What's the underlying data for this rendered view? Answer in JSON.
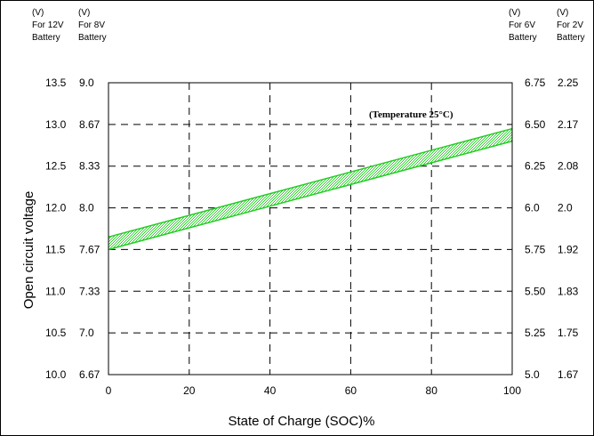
{
  "chart_data": {
    "type": "area",
    "xlabel": "State of Charge (SOC)%",
    "ylabel": "Open circuit voltage",
    "annotation": "(Temperature 25°C)",
    "xlim": [
      0,
      100
    ],
    "ylim": [
      10.0,
      13.5
    ],
    "x_ticks": [
      "0",
      "20",
      "40",
      "60",
      "80",
      "100"
    ],
    "grid": true,
    "y_axes": [
      {
        "side": "left",
        "header": [
          "(V)",
          "For 12V",
          "Battery"
        ],
        "ticks": [
          "13.5",
          "13.0",
          "12.5",
          "12.0",
          "11.5",
          "11.0",
          "10.5",
          "10.0"
        ]
      },
      {
        "side": "left",
        "header": [
          "(V)",
          "For 8V",
          "Battery"
        ],
        "ticks": [
          "9.0",
          "8.67",
          "8.33",
          "8.0",
          "7.67",
          "7.33",
          "7.0",
          "6.67"
        ]
      },
      {
        "side": "right",
        "header": [
          "(V)",
          "For 6V",
          "Battery"
        ],
        "ticks": [
          "6.75",
          "6.50",
          "6.25",
          "6.0",
          "5.75",
          "5.50",
          "5.25",
          "5.0"
        ]
      },
      {
        "side": "right",
        "header": [
          "(V)",
          "For 2V",
          "Battery"
        ],
        "ticks": [
          "2.25",
          "2.17",
          "2.08",
          "2.0",
          "1.92",
          "1.83",
          "1.75",
          "1.67"
        ]
      }
    ],
    "band": {
      "x": [
        0,
        100
      ],
      "upper": [
        11.65,
        12.95
      ],
      "lower": [
        11.5,
        12.8
      ],
      "color": "#22cc22"
    },
    "y_tick_values": [
      13.5,
      13.0,
      12.5,
      12.0,
      11.5,
      11.0,
      10.5,
      10.0
    ]
  }
}
